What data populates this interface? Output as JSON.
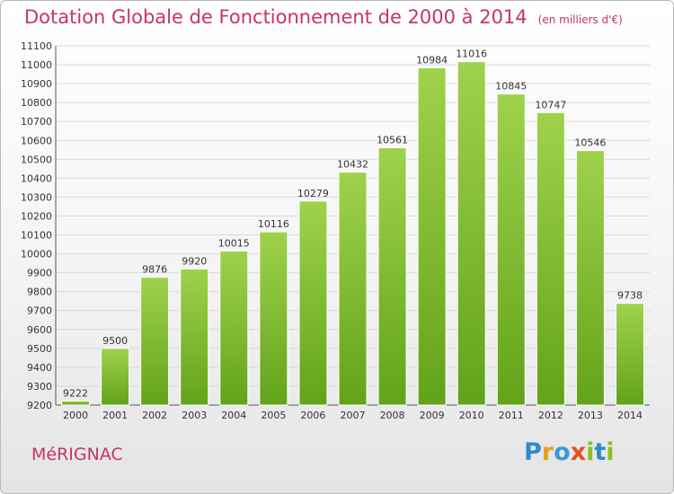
{
  "title": "Dotation Globale de Fonctionnement de 2000 à 2014",
  "unit_note": "(en milliers d'€)",
  "commune": "MéRIGNAC",
  "logo": {
    "letters": [
      {
        "char": "P",
        "color": "#2b8bd0"
      },
      {
        "char": "r",
        "color": "#e6a020"
      },
      {
        "char": "o",
        "color": "#3a9ad8"
      },
      {
        "char": "x",
        "color": "#e45020"
      },
      {
        "char": "i",
        "color": "#8cbf26"
      },
      {
        "char": "t",
        "color": "#2b8bd0"
      },
      {
        "char": "i",
        "color": "#8cbf26"
      }
    ]
  },
  "chart_data": {
    "type": "bar",
    "categories": [
      "2000",
      "2001",
      "2002",
      "2003",
      "2004",
      "2005",
      "2006",
      "2007",
      "2008",
      "2009",
      "2010",
      "2011",
      "2012",
      "2013",
      "2014"
    ],
    "values": [
      9222,
      9500,
      9876,
      9920,
      10015,
      10116,
      10279,
      10432,
      10561,
      10984,
      11016,
      10845,
      10747,
      10546,
      9738
    ],
    "ylim": [
      9200,
      11100
    ],
    "yticks": [
      9200,
      9300,
      9400,
      9500,
      9600,
      9700,
      9800,
      9900,
      10000,
      10100,
      10200,
      10300,
      10400,
      10500,
      10600,
      10700,
      10800,
      10900,
      11000,
      11100
    ],
    "grid": true,
    "bar_color": "#8cc63f"
  }
}
